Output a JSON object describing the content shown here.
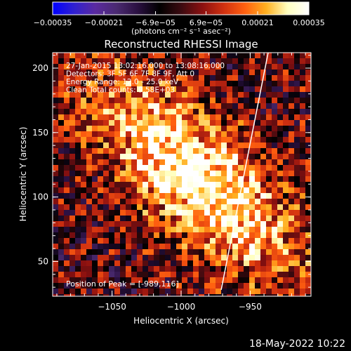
{
  "chart_data": {
    "type": "heatmap",
    "title": "Reconstructed RHESSI Image",
    "xlabel": "Heliocentric X (arcsec)",
    "ylabel": "Heliocentric Y (arcsec)",
    "xlim": [
      -1093,
      -906
    ],
    "ylim": [
      23,
      212
    ],
    "x_ticks": [
      {
        "value": -1050,
        "label": "−1050"
      },
      {
        "value": -1000,
        "label": "−1000"
      },
      {
        "value": -950,
        "label": "−950"
      }
    ],
    "y_ticks": [
      {
        "value": 50,
        "label": "50"
      },
      {
        "value": 100,
        "label": "100"
      },
      {
        "value": 150,
        "label": "150"
      },
      {
        "value": 200,
        "label": "200"
      }
    ],
    "info_lines": [
      "27-Jan-2015 13:02:16.000 to 13:08:16.000",
      "Detectors: 3F 5F 6F 7F 8F 9F, Att 0",
      "Energy Range: 12.0 - 25.0 keV",
      "Clean     Total counts: 9.58E+03"
    ],
    "peak_label": "Position of Peak = [-989,116]",
    "peak": [
      -989,
      116
    ],
    "colorbar": {
      "range": [
        -0.00035,
        0.00035
      ],
      "ticks": [
        {
          "value": -0.00035,
          "label": "−0.00035"
        },
        {
          "value": -0.00021,
          "label": "−0.00021"
        },
        {
          "value": -6.9e-05,
          "label": "−6.9e−05"
        },
        {
          "value": 6.9e-05,
          "label": "6.9e−05"
        },
        {
          "value": 0.00021,
          "label": "0.00021"
        },
        {
          "value": 0.00035,
          "label": "0.00035"
        }
      ],
      "unit": "(photons cm⁻² s⁻¹ asec⁻²)",
      "stops": [
        "#0000ff",
        "#3020d0",
        "#5a2aa0",
        "#4a2a70",
        "#2a1040",
        "#000000",
        "#3a0a10",
        "#8a1010",
        "#d03010",
        "#ff6010",
        "#ffb020",
        "#ffffc0",
        "#ffffff"
      ]
    },
    "limb_line": [
      [
        -971,
        28
      ],
      [
        -937,
        212
      ]
    ]
  },
  "footer": {
    "date": "18-May-2022 10:22"
  }
}
